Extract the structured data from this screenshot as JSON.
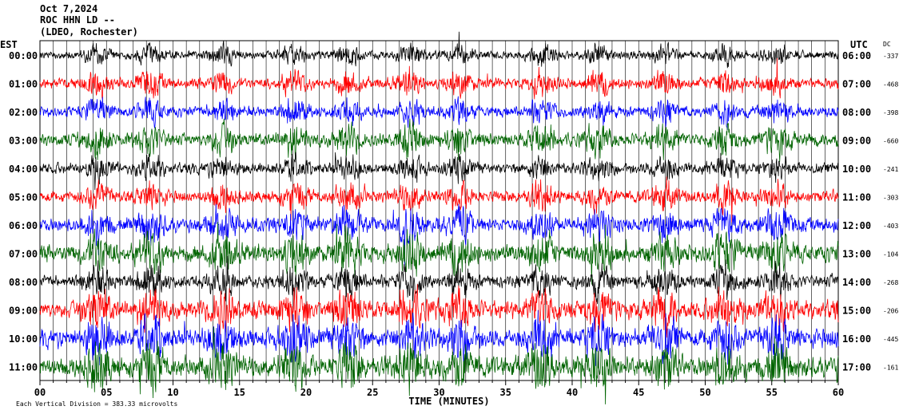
{
  "header": {
    "date": "Oct 7,2024",
    "station": "ROC HHN LD --",
    "network": "(LDEO, Rochester)"
  },
  "chart_data": {
    "type": "line",
    "title": "",
    "xlabel": "TIME (MINUTES)",
    "left_axis_label": "EST",
    "right_axis_label": "UTC",
    "dc_label": "DC",
    "xlim": [
      0,
      60
    ],
    "x_ticks": [
      "00",
      "05",
      "10",
      "15",
      "20",
      "25",
      "30",
      "35",
      "40",
      "45",
      "50",
      "55",
      "60"
    ],
    "rows": [
      {
        "est": "00:00",
        "utc": "06:00",
        "dc": "-337",
        "color": "#000000",
        "amplitude": 0.35
      },
      {
        "est": "01:00",
        "utc": "07:00",
        "dc": "-468",
        "color": "#ff0000",
        "amplitude": 0.45
      },
      {
        "est": "02:00",
        "utc": "08:00",
        "dc": "-398",
        "color": "#0000ff",
        "amplitude": 0.45
      },
      {
        "est": "03:00",
        "utc": "09:00",
        "dc": "-660",
        "color": "#006400",
        "amplitude": 0.55
      },
      {
        "est": "04:00",
        "utc": "10:00",
        "dc": "-241",
        "color": "#000000",
        "amplitude": 0.45
      },
      {
        "est": "05:00",
        "utc": "11:00",
        "dc": "-303",
        "color": "#ff0000",
        "amplitude": 0.5
      },
      {
        "est": "06:00",
        "utc": "12:00",
        "dc": "-403",
        "color": "#0000ff",
        "amplitude": 0.6
      },
      {
        "est": "07:00",
        "utc": "13:00",
        "dc": "-104",
        "color": "#006400",
        "amplitude": 0.75
      },
      {
        "est": "08:00",
        "utc": "14:00",
        "dc": "-268",
        "color": "#000000",
        "amplitude": 0.55
      },
      {
        "est": "09:00",
        "utc": "15:00",
        "dc": "-206",
        "color": "#ff0000",
        "amplitude": 0.75
      },
      {
        "est": "10:00",
        "utc": "16:00",
        "dc": "-445",
        "color": "#0000ff",
        "amplitude": 0.8
      },
      {
        "est": "11:00",
        "utc": "17:00",
        "dc": "-161",
        "color": "#006400",
        "amplitude": 0.85
      }
    ],
    "grid": true,
    "scale_note": "Each Vertical Division = 383.33 microvolts"
  }
}
